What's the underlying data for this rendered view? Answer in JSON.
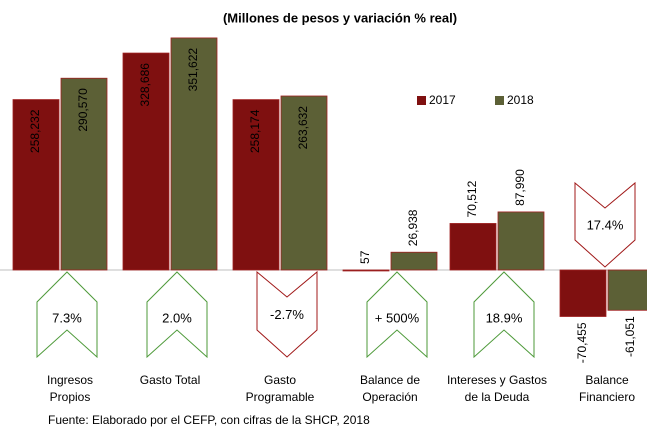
{
  "chart_data": {
    "type": "bar",
    "title": "(Millones de pesos y variación % real)",
    "categories": [
      "Ingresos Propios",
      "Gasto Total",
      "Gasto Programable",
      "Balance de Operación",
      "Intereses y Gastos de la Deuda",
      "Balance Financiero"
    ],
    "series": [
      {
        "name": "2017",
        "color": "#7f1010",
        "values": [
          258232,
          328686,
          258174,
          57,
          70512,
          -70455
        ],
        "value_labels": [
          "258,232",
          "328,686",
          "258,174",
          "57",
          "70,512",
          "-70,455"
        ]
      },
      {
        "name": "2018",
        "color": "#5c6036",
        "values": [
          290570,
          351622,
          263632,
          26938,
          87990,
          -61051
        ],
        "value_labels": [
          "290,570",
          "351,622",
          "263,632",
          "26,938",
          "87,990",
          "-61,051"
        ]
      }
    ],
    "ylim": [
      -100000,
      400000
    ],
    "variations": [
      {
        "label": "7.3%",
        "direction": "up"
      },
      {
        "label": "2.0%",
        "direction": "up"
      },
      {
        "label": "-2.7%",
        "direction": "down"
      },
      {
        "label": "+ 500%",
        "direction": "up"
      },
      {
        "label": "18.9%",
        "direction": "up"
      },
      {
        "label": "17.4%",
        "direction": "down"
      }
    ],
    "source": "Fuente: Elaborado por el CEFP, con cifras de la SHCP, 2018"
  }
}
